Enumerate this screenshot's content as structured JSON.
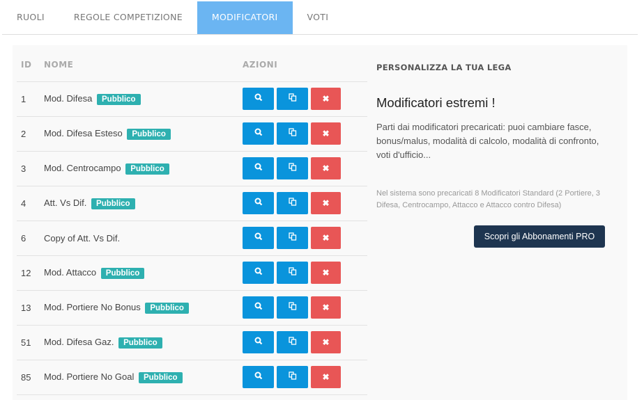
{
  "tabs": [
    {
      "label": "RUOLI"
    },
    {
      "label": "REGOLE COMPETIZIONE"
    },
    {
      "label": "MODIFICATORI",
      "active": true
    },
    {
      "label": "VOTI"
    }
  ],
  "table": {
    "headers": {
      "id": "ID",
      "name": "NOME",
      "actions": "AZIONI"
    },
    "rows": [
      {
        "id": "1",
        "name": "Mod. Difesa",
        "badge": "Pubblico"
      },
      {
        "id": "2",
        "name": "Mod. Difesa Esteso",
        "badge": "Pubblico"
      },
      {
        "id": "3",
        "name": "Mod. Centrocampo",
        "badge": "Pubblico"
      },
      {
        "id": "4",
        "name": "Att. Vs Dif.",
        "badge": "Pubblico"
      },
      {
        "id": "6",
        "name": "Copy of Att. Vs Dif.",
        "badge": null
      },
      {
        "id": "12",
        "name": "Mod. Attacco",
        "badge": "Pubblico"
      },
      {
        "id": "13",
        "name": "Mod. Portiere No Bonus",
        "badge": "Pubblico"
      },
      {
        "id": "51",
        "name": "Mod. Difesa Gaz.",
        "badge": "Pubblico"
      },
      {
        "id": "85",
        "name": "Mod. Portiere No Goal",
        "badge": "Pubblico"
      }
    ]
  },
  "side": {
    "heading": "PERSONALIZZA LA TUA LEGA",
    "title": "Modificatori estremi !",
    "description": "Parti dai modificatori precaricati: puoi cambiare fasce, bonus/malus, modalità di calcolo, modalità di confronto, voti d'ufficio...",
    "note": "Nel sistema sono precaricati 8 Modificatori Standard (2 Portiere, 3 Difesa, Centrocampo, Attacco e Attacco contro Difesa)",
    "cta": "Scopri gli Abbonamenti PRO"
  },
  "colors": {
    "active_tab": "#6bb5f2",
    "action_blue": "#0a94dc",
    "delete_red": "#e85656",
    "badge": "#2eb0b0",
    "cta": "#1e3550"
  }
}
